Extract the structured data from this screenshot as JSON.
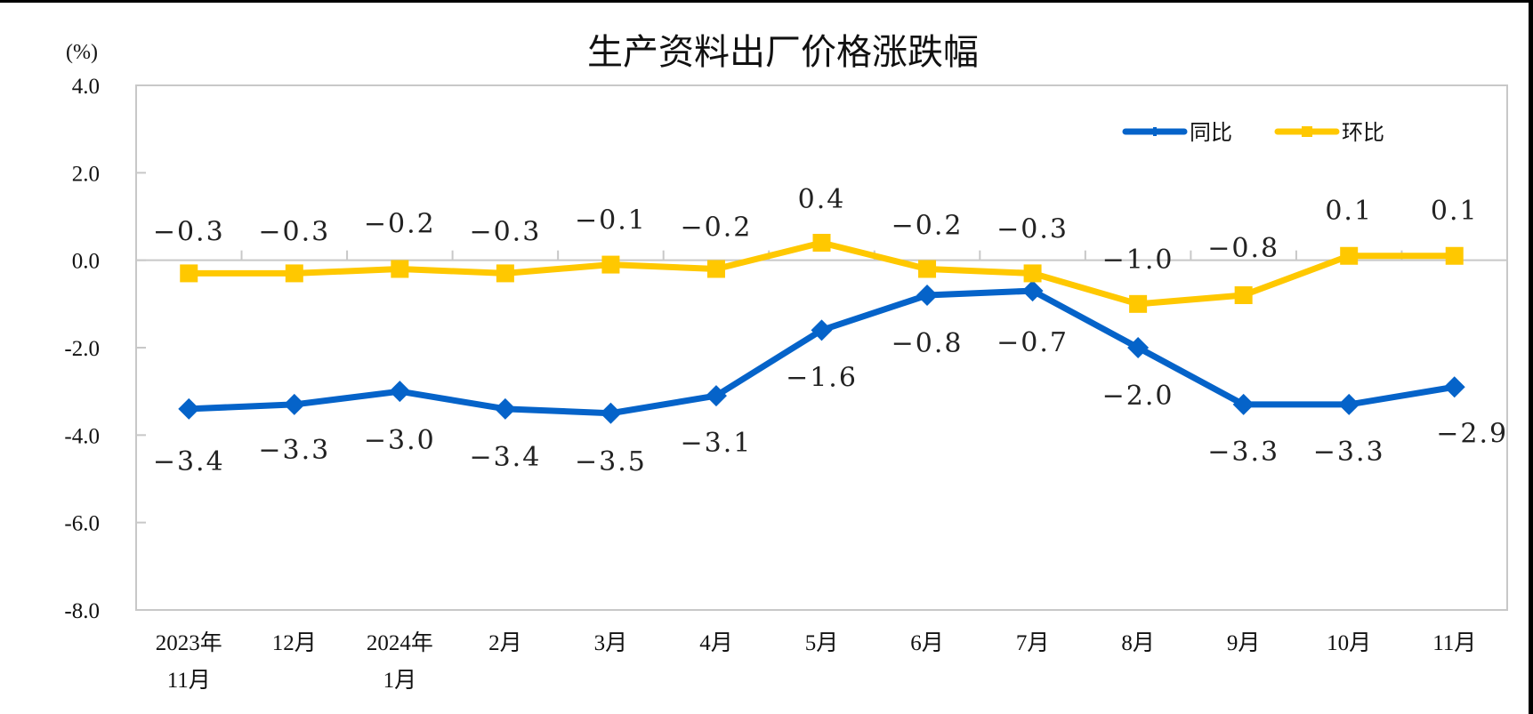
{
  "chart_data": {
    "type": "line",
    "title": "生产资料出厂价格涨跌幅",
    "unit_label": "(%)",
    "xlabel": "",
    "ylabel": "(%)",
    "ylim": [
      -8.0,
      4.0
    ],
    "yticks": [
      "4.0",
      "2.0",
      "0.0",
      "-2.0",
      "-4.0",
      "-6.0",
      "-8.0"
    ],
    "grid": false,
    "legend_position": "top-right inside",
    "categories": [
      [
        "2023年",
        "11月"
      ],
      [
        "12月"
      ],
      [
        "2024年",
        "1月"
      ],
      [
        "2月"
      ],
      [
        "3月"
      ],
      [
        "4月"
      ],
      [
        "5月"
      ],
      [
        "6月"
      ],
      [
        "7月"
      ],
      [
        "8月"
      ],
      [
        "9月"
      ],
      [
        "10月"
      ],
      [
        "11月"
      ]
    ],
    "series": [
      {
        "name": "同比",
        "color": "#0563C9",
        "marker": "diamond",
        "values": [
          -3.4,
          -3.3,
          -3.0,
          -3.4,
          -3.5,
          -3.1,
          -1.6,
          -0.8,
          -0.7,
          -2.0,
          -3.3,
          -3.3,
          -2.9
        ],
        "labels": [
          "−3.4",
          "−3.3",
          "−3.0",
          "−3.4",
          "−3.5",
          "−3.1",
          "−1.6",
          "−0.8",
          "−0.7",
          "−2.0",
          "−3.3",
          "−3.3",
          "−2.9"
        ]
      },
      {
        "name": "环比",
        "color": "#FFC800",
        "marker": "square",
        "values": [
          -0.3,
          -0.3,
          -0.2,
          -0.3,
          -0.1,
          -0.2,
          0.4,
          -0.2,
          -0.3,
          -1.0,
          -0.8,
          0.1,
          0.1
        ],
        "labels": [
          "−0.3",
          "−0.3",
          "−0.2",
          "−0.3",
          "−0.1",
          "−0.2",
          "0.4",
          "−0.2",
          "−0.3",
          "−1.0",
          "−0.8",
          "0.1",
          "0.1"
        ]
      }
    ]
  },
  "colors": {
    "axis": "#C8C8C8",
    "text": "#111111",
    "background": "#FFFFFF"
  }
}
